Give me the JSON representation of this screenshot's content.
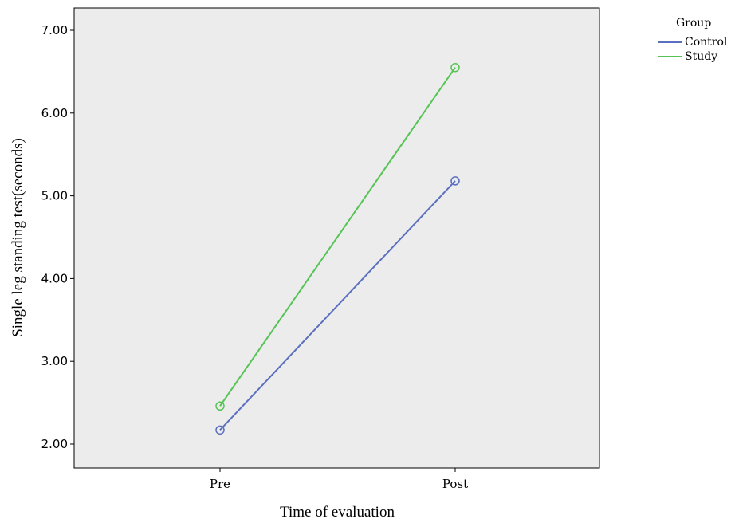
{
  "chart_data": {
    "type": "line",
    "title": "",
    "xlabel": "Time of evaluation",
    "ylabel": "Single leg standing test(seconds)",
    "categories": [
      "Pre",
      "Post"
    ],
    "ylim": [
      1.8,
      7.3
    ],
    "yticks": [
      2.0,
      3.0,
      4.0,
      5.0,
      6.0,
      7.0
    ],
    "ytick_labels": [
      "2.00",
      "3.00",
      "4.00",
      "5.00",
      "6.00",
      "7.00"
    ],
    "grid": false,
    "plot_background": "#ececec",
    "legend": {
      "title": "Group",
      "placement": "outside-top-right"
    },
    "series": [
      {
        "name": "Control",
        "color": "#5b6fc0",
        "values": [
          2.17,
          5.18
        ],
        "marker": "open-circle"
      },
      {
        "name": "Study",
        "color": "#55c455",
        "values": [
          2.46,
          6.55
        ],
        "marker": "open-circle"
      }
    ]
  }
}
